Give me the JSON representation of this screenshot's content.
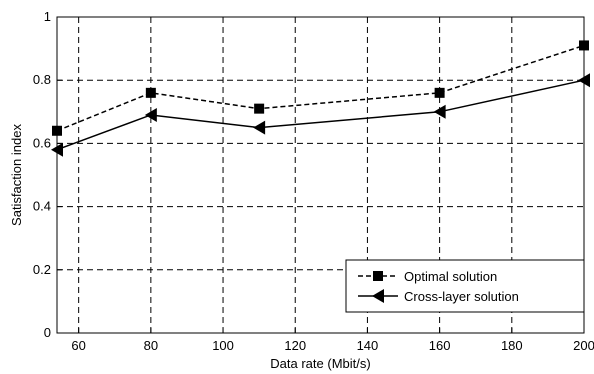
{
  "chart_data": {
    "type": "line",
    "x": [
      54,
      80,
      110,
      160,
      200
    ],
    "series": [
      {
        "name": "Optimal solution",
        "values": [
          0.64,
          0.76,
          0.71,
          0.76,
          0.91
        ],
        "marker": "square",
        "dash": true
      },
      {
        "name": "Cross-layer solution",
        "values": [
          0.58,
          0.69,
          0.65,
          0.7,
          0.8
        ],
        "marker": "triangle-left",
        "dash": false
      }
    ],
    "title": "",
    "xlabel": "Data rate (Mbit/s)",
    "ylabel": "Satisfaction index",
    "xlim": [
      54,
      200
    ],
    "ylim": [
      0,
      1
    ],
    "xticks": [
      60,
      80,
      100,
      120,
      140,
      160,
      180,
      200
    ],
    "yticks": [
      0,
      0.2,
      0.4,
      0.6,
      0.8,
      1
    ],
    "ytick_labels": [
      "0",
      "0.2",
      "0.4",
      "0.6",
      "0.8",
      "1"
    ],
    "grid": true,
    "legend_position": "bottom-right",
    "colors": {
      "line": "#000000",
      "background": "#ffffff"
    }
  }
}
